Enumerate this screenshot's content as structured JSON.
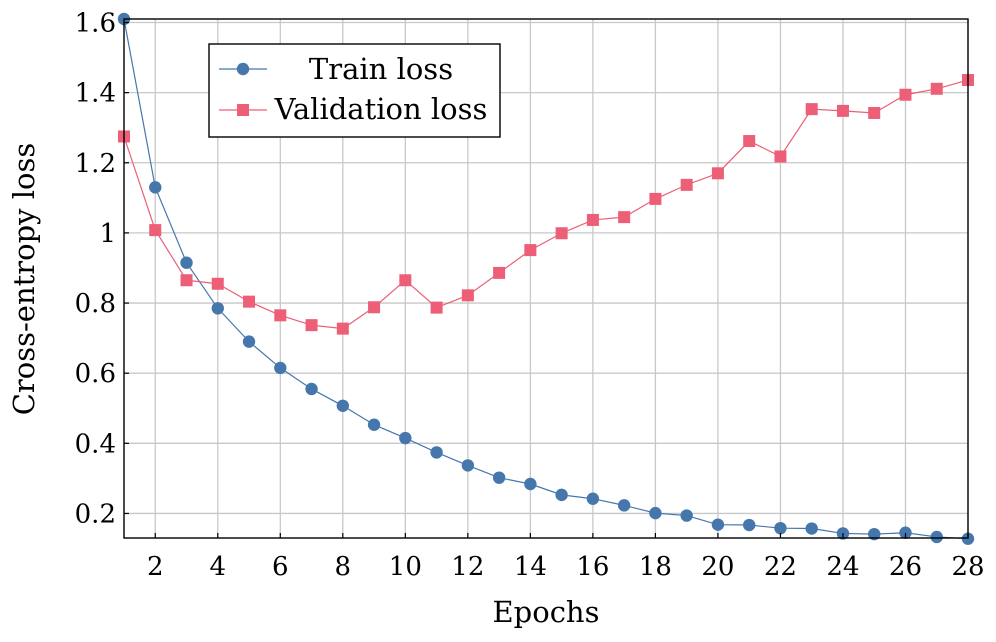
{
  "chart_data": {
    "type": "line",
    "title": "",
    "xlabel": "Epochs",
    "ylabel": "Cross-entropy loss",
    "xlim": [
      1,
      28
    ],
    "ylim": [
      0.13,
      1.61
    ],
    "x_ticks": [
      2,
      4,
      6,
      8,
      10,
      12,
      14,
      16,
      18,
      20,
      22,
      24,
      26,
      28
    ],
    "x_tick_labels": [
      "2",
      "4",
      "6",
      "8",
      "10",
      "12",
      "14",
      "16",
      "18",
      "20",
      "22",
      "24",
      "26",
      "28"
    ],
    "y_ticks": [
      0.2,
      0.4,
      0.6,
      0.8,
      1.0,
      1.2,
      1.4,
      1.6
    ],
    "y_tick_labels": [
      "0.2",
      "0.4",
      "0.6",
      "0.8",
      "1",
      "1.2",
      "1.4",
      "1.6"
    ],
    "grid": true,
    "legend_position": "top-left",
    "x": [
      1,
      2,
      3,
      4,
      5,
      6,
      7,
      8,
      9,
      10,
      11,
      12,
      13,
      14,
      15,
      16,
      17,
      18,
      19,
      20,
      21,
      22,
      23,
      24,
      25,
      26,
      27,
      28
    ],
    "series": [
      {
        "name": "Train loss",
        "color": "#4677ac",
        "marker": "circle",
        "values": [
          1.61,
          1.13,
          0.915,
          0.785,
          0.69,
          0.615,
          0.555,
          0.507,
          0.453,
          0.415,
          0.374,
          0.337,
          0.302,
          0.284,
          0.253,
          0.242,
          0.223,
          0.201,
          0.194,
          0.168,
          0.167,
          0.158,
          0.157,
          0.143,
          0.141,
          0.145,
          0.133,
          0.128
        ]
      },
      {
        "name": "Validation loss",
        "color": "#ec5f77",
        "marker": "square",
        "values": [
          1.275,
          1.008,
          0.865,
          0.855,
          0.804,
          0.765,
          0.737,
          0.727,
          0.788,
          0.865,
          0.787,
          0.822,
          0.886,
          0.951,
          0.999,
          1.037,
          1.045,
          1.097,
          1.137,
          1.17,
          1.262,
          1.218,
          1.353,
          1.348,
          1.342,
          1.394,
          1.411,
          1.436
        ]
      }
    ]
  }
}
